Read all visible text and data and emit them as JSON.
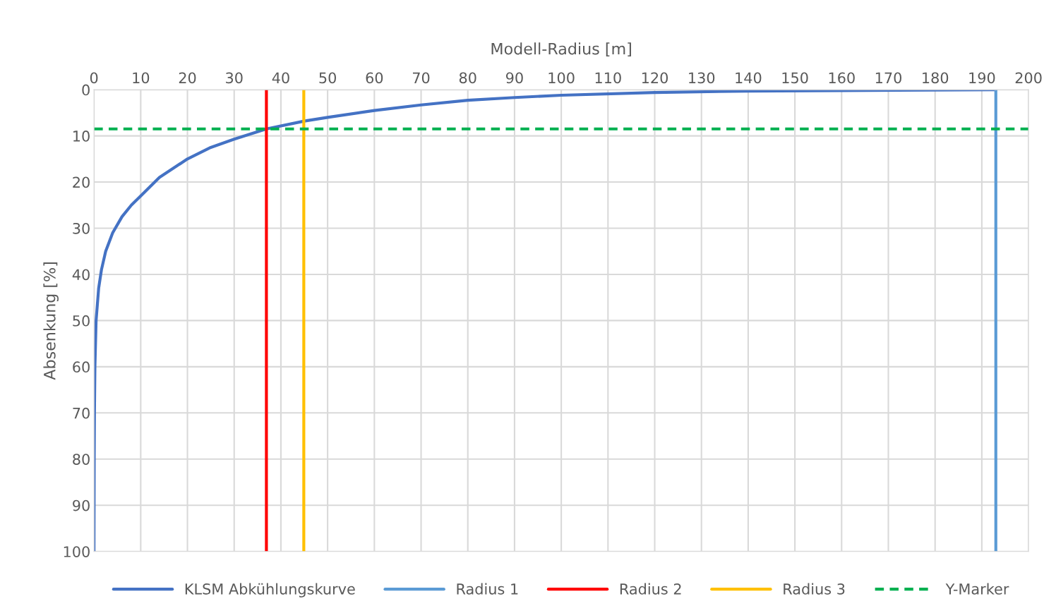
{
  "chart_data": {
    "type": "line",
    "xlabel": "Modell-Radius [m]",
    "ylabel": "Absenkung [%]",
    "xlim": [
      0,
      200
    ],
    "xticks": [
      0,
      10,
      20,
      30,
      40,
      50,
      60,
      70,
      80,
      90,
      100,
      110,
      120,
      130,
      140,
      150,
      160,
      170,
      180,
      190,
      200
    ],
    "ylim": [
      100,
      0
    ],
    "yticks": [
      0,
      10,
      20,
      30,
      40,
      50,
      60,
      70,
      80,
      90,
      100
    ],
    "grid": true,
    "legend": "bottom",
    "marker": "none",
    "series": [
      {
        "name": "KLSM Abkühlungskurve",
        "color": "#4472c4",
        "line_style": "solid",
        "x": [
          0,
          0.05,
          0.1,
          0.2,
          0.45,
          1,
          1.6,
          2.5,
          4,
          6,
          8,
          10,
          14,
          20,
          25,
          30,
          36.9,
          45,
          50,
          60,
          70,
          80,
          90,
          100,
          120,
          140,
          160,
          193
        ],
        "values": [
          100,
          80,
          70,
          60,
          50,
          43,
          39,
          35,
          31,
          27.5,
          25,
          23,
          19,
          15,
          12.5,
          10.7,
          8.5,
          6.8,
          6,
          4.5,
          3.3,
          2.3,
          1.7,
          1.2,
          0.6,
          0.3,
          0.2,
          0
        ]
      },
      {
        "name": "Radius 1",
        "color": "#5b9bd5",
        "line_style": "solid",
        "x": [
          193,
          193
        ],
        "values": [
          0,
          100
        ]
      },
      {
        "name": "Radius 2",
        "color": "#ff0000",
        "line_style": "solid",
        "x": [
          36.9,
          36.9
        ],
        "values": [
          0,
          100
        ]
      },
      {
        "name": "Radius 3",
        "color": "#ffc000",
        "line_style": "solid",
        "x": [
          44.9,
          44.9
        ],
        "values": [
          0,
          100
        ]
      },
      {
        "name": "Y-Marker",
        "color": "#00b050",
        "line_style": "dashed",
        "x": [
          0,
          200
        ],
        "values": [
          8.5,
          8.5
        ]
      }
    ]
  }
}
